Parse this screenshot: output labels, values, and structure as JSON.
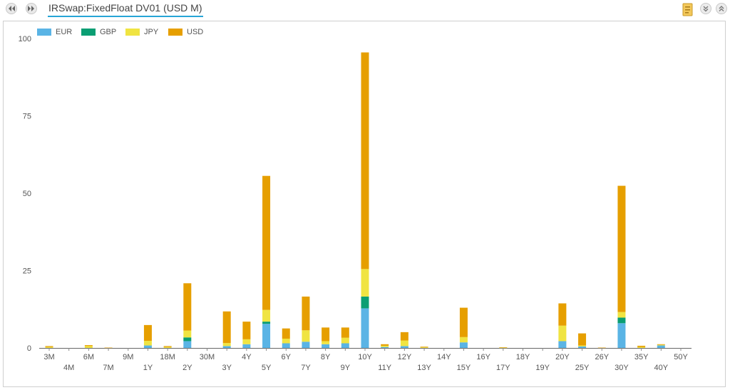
{
  "header": {
    "title": "IRSwap:FixedFloat DV01 (USD M)",
    "prev_icon": "rewind-icon",
    "next_icon": "fast-forward-icon",
    "export_icon": "document-export-icon",
    "collapse_icon": "chevron-double-down-icon",
    "expand_icon": "chevron-double-up-icon"
  },
  "colors": {
    "EUR": "#5ab4e5",
    "GBP": "#0a9e73",
    "JPY": "#f0e442",
    "USD": "#e69f00",
    "title_underline": "#27a5d6"
  },
  "chart_data": {
    "type": "bar",
    "stacked": true,
    "title": "",
    "xlabel": "",
    "ylabel": "",
    "ylim": [
      0,
      100
    ],
    "yticks": [
      0,
      25,
      50,
      75,
      100
    ],
    "grid": false,
    "legend_position": "top-left",
    "categories": [
      "3M",
      "4M",
      "6M",
      "7M",
      "9M",
      "1Y",
      "18M",
      "2Y",
      "30M",
      "3Y",
      "4Y",
      "5Y",
      "6Y",
      "7Y",
      "8Y",
      "9Y",
      "10Y",
      "11Y",
      "12Y",
      "13Y",
      "14Y",
      "15Y",
      "16Y",
      "17Y",
      "18Y",
      "19Y",
      "20Y",
      "25Y",
      "26Y",
      "30Y",
      "35Y",
      "40Y",
      "50Y"
    ],
    "series": [
      {
        "name": "EUR",
        "values": [
          0,
          0,
          0,
          0,
          0,
          0.8,
          0,
          2.2,
          0,
          0.6,
          1.2,
          7.8,
          1.5,
          2,
          1.2,
          1.5,
          12.8,
          0.3,
          0.6,
          0,
          0,
          1.8,
          0,
          0,
          0,
          0,
          2.2,
          0.5,
          0,
          8,
          0,
          0.8,
          0
        ]
      },
      {
        "name": "GBP",
        "values": [
          0,
          0,
          0,
          0,
          0,
          0,
          0,
          1.2,
          0,
          0,
          0,
          0.7,
          0,
          0,
          0,
          0,
          3.8,
          0,
          0,
          0,
          0,
          0,
          0,
          0,
          0,
          0,
          0,
          0,
          0,
          1.8,
          0,
          0,
          0
        ]
      },
      {
        "name": "JPY",
        "values": [
          0.3,
          0,
          0.6,
          0,
          0,
          1.5,
          0.3,
          2.2,
          0,
          1,
          1.6,
          3.8,
          1.5,
          3.7,
          1,
          1.8,
          8.9,
          0.4,
          1.8,
          0.2,
          0,
          1.7,
          0,
          0.1,
          0,
          0,
          5,
          0.3,
          0,
          1.8,
          0.3,
          0.2,
          0
        ]
      },
      {
        "name": "USD",
        "values": [
          0.3,
          0,
          0.3,
          0.1,
          0,
          5.1,
          0.3,
          15.3,
          0,
          10.2,
          5.7,
          43.3,
          3.3,
          10.9,
          4.4,
          3.3,
          70,
          0.5,
          2.7,
          0.2,
          0,
          9.5,
          0,
          0.1,
          0,
          0,
          7.2,
          3.9,
          0.1,
          40.8,
          0.4,
          0.2,
          0
        ]
      }
    ]
  }
}
